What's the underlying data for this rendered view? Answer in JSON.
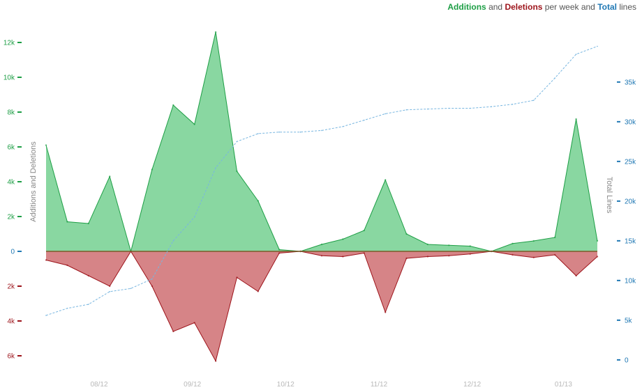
{
  "legend": {
    "additions": "Additions",
    "and": "and",
    "deletions": "Deletions",
    "per_week_and": "per week and",
    "total": "Total",
    "lines": "lines"
  },
  "colors": {
    "additions": "#1d9e45",
    "additions_fill": "#89d7a1",
    "deletions": "#9c1219",
    "deletions_fill": "#d68487",
    "total": "#1f78b4",
    "total_line": "#78b6e0"
  },
  "chart_data": {
    "type": "area",
    "title": "Additions and Deletions per week and Total lines",
    "ylabel_left": "Additions and Deletions",
    "ylabel_right": "Total Lines",
    "ylim_left": [
      -6600,
      12600
    ],
    "ylim_right": [
      -800,
      41300
    ],
    "left_ticks_positive": [
      {
        "value": 12000,
        "label": "12k"
      },
      {
        "value": 10000,
        "label": "10k"
      },
      {
        "value": 8000,
        "label": "8k"
      },
      {
        "value": 6000,
        "label": "6k"
      },
      {
        "value": 4000,
        "label": "4k"
      },
      {
        "value": 2000,
        "label": "2k"
      },
      {
        "value": 0,
        "label": "0"
      }
    ],
    "left_ticks_negative": [
      {
        "value": -2000,
        "label": "2k"
      },
      {
        "value": -4000,
        "label": "4k"
      },
      {
        "value": -6000,
        "label": "6k"
      }
    ],
    "right_ticks": [
      {
        "value": 35000,
        "label": "35k"
      },
      {
        "value": 30000,
        "label": "30k"
      },
      {
        "value": 25000,
        "label": "25k"
      },
      {
        "value": 20000,
        "label": "20k"
      },
      {
        "value": 15000,
        "label": "15k"
      },
      {
        "value": 10000,
        "label": "10k"
      },
      {
        "value": 5000,
        "label": "5k"
      },
      {
        "value": 0,
        "label": "0"
      }
    ],
    "x_ticks": [
      {
        "week": 2.5,
        "label": "08/12"
      },
      {
        "week": 6.9,
        "label": "09/12"
      },
      {
        "week": 11.3,
        "label": "10/12"
      },
      {
        "week": 15.7,
        "label": "11/12"
      },
      {
        "week": 20.1,
        "label": "12/12"
      },
      {
        "week": 24.4,
        "label": "01/13"
      }
    ],
    "weeks": [
      0,
      1,
      2,
      3,
      4,
      5,
      6,
      7,
      8,
      9,
      10,
      11,
      12,
      13,
      14,
      15,
      16,
      17,
      18,
      19,
      20,
      21,
      22,
      23,
      24,
      25,
      26
    ],
    "series": [
      {
        "name": "Additions",
        "values": [
          6100,
          1700,
          1600,
          4300,
          0,
          4700,
          8400,
          7300,
          12600,
          4600,
          2900,
          100,
          0,
          400,
          700,
          1200,
          4100,
          1000,
          400,
          350,
          300,
          0,
          450,
          600,
          800,
          7600,
          600
        ]
      },
      {
        "name": "Deletions",
        "values": [
          -500,
          -800,
          -1400,
          -2000,
          0,
          -2000,
          -4600,
          -4100,
          -6300,
          -1500,
          -2300,
          -100,
          0,
          -250,
          -300,
          -100,
          -3500,
          -400,
          -300,
          -250,
          -150,
          0,
          -200,
          -350,
          -200,
          -1400,
          -300
        ]
      },
      {
        "name": "Total",
        "values": [
          5600,
          6500,
          7000,
          8600,
          9000,
          10200,
          15000,
          18000,
          24200,
          27500,
          28500,
          28700,
          28700,
          28900,
          29400,
          30200,
          31000,
          31500,
          31600,
          31700,
          31700,
          31900,
          32200,
          32700,
          35500,
          38500,
          39500
        ]
      }
    ]
  }
}
